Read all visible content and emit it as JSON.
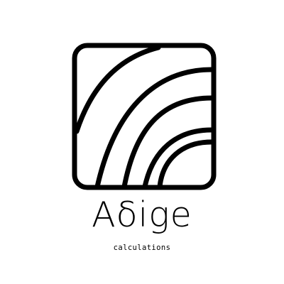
{
  "logo": {
    "brand_name": "Aδige",
    "tagline": "calculations",
    "colors": {
      "ink": "#000000",
      "background": "#ffffff"
    }
  }
}
